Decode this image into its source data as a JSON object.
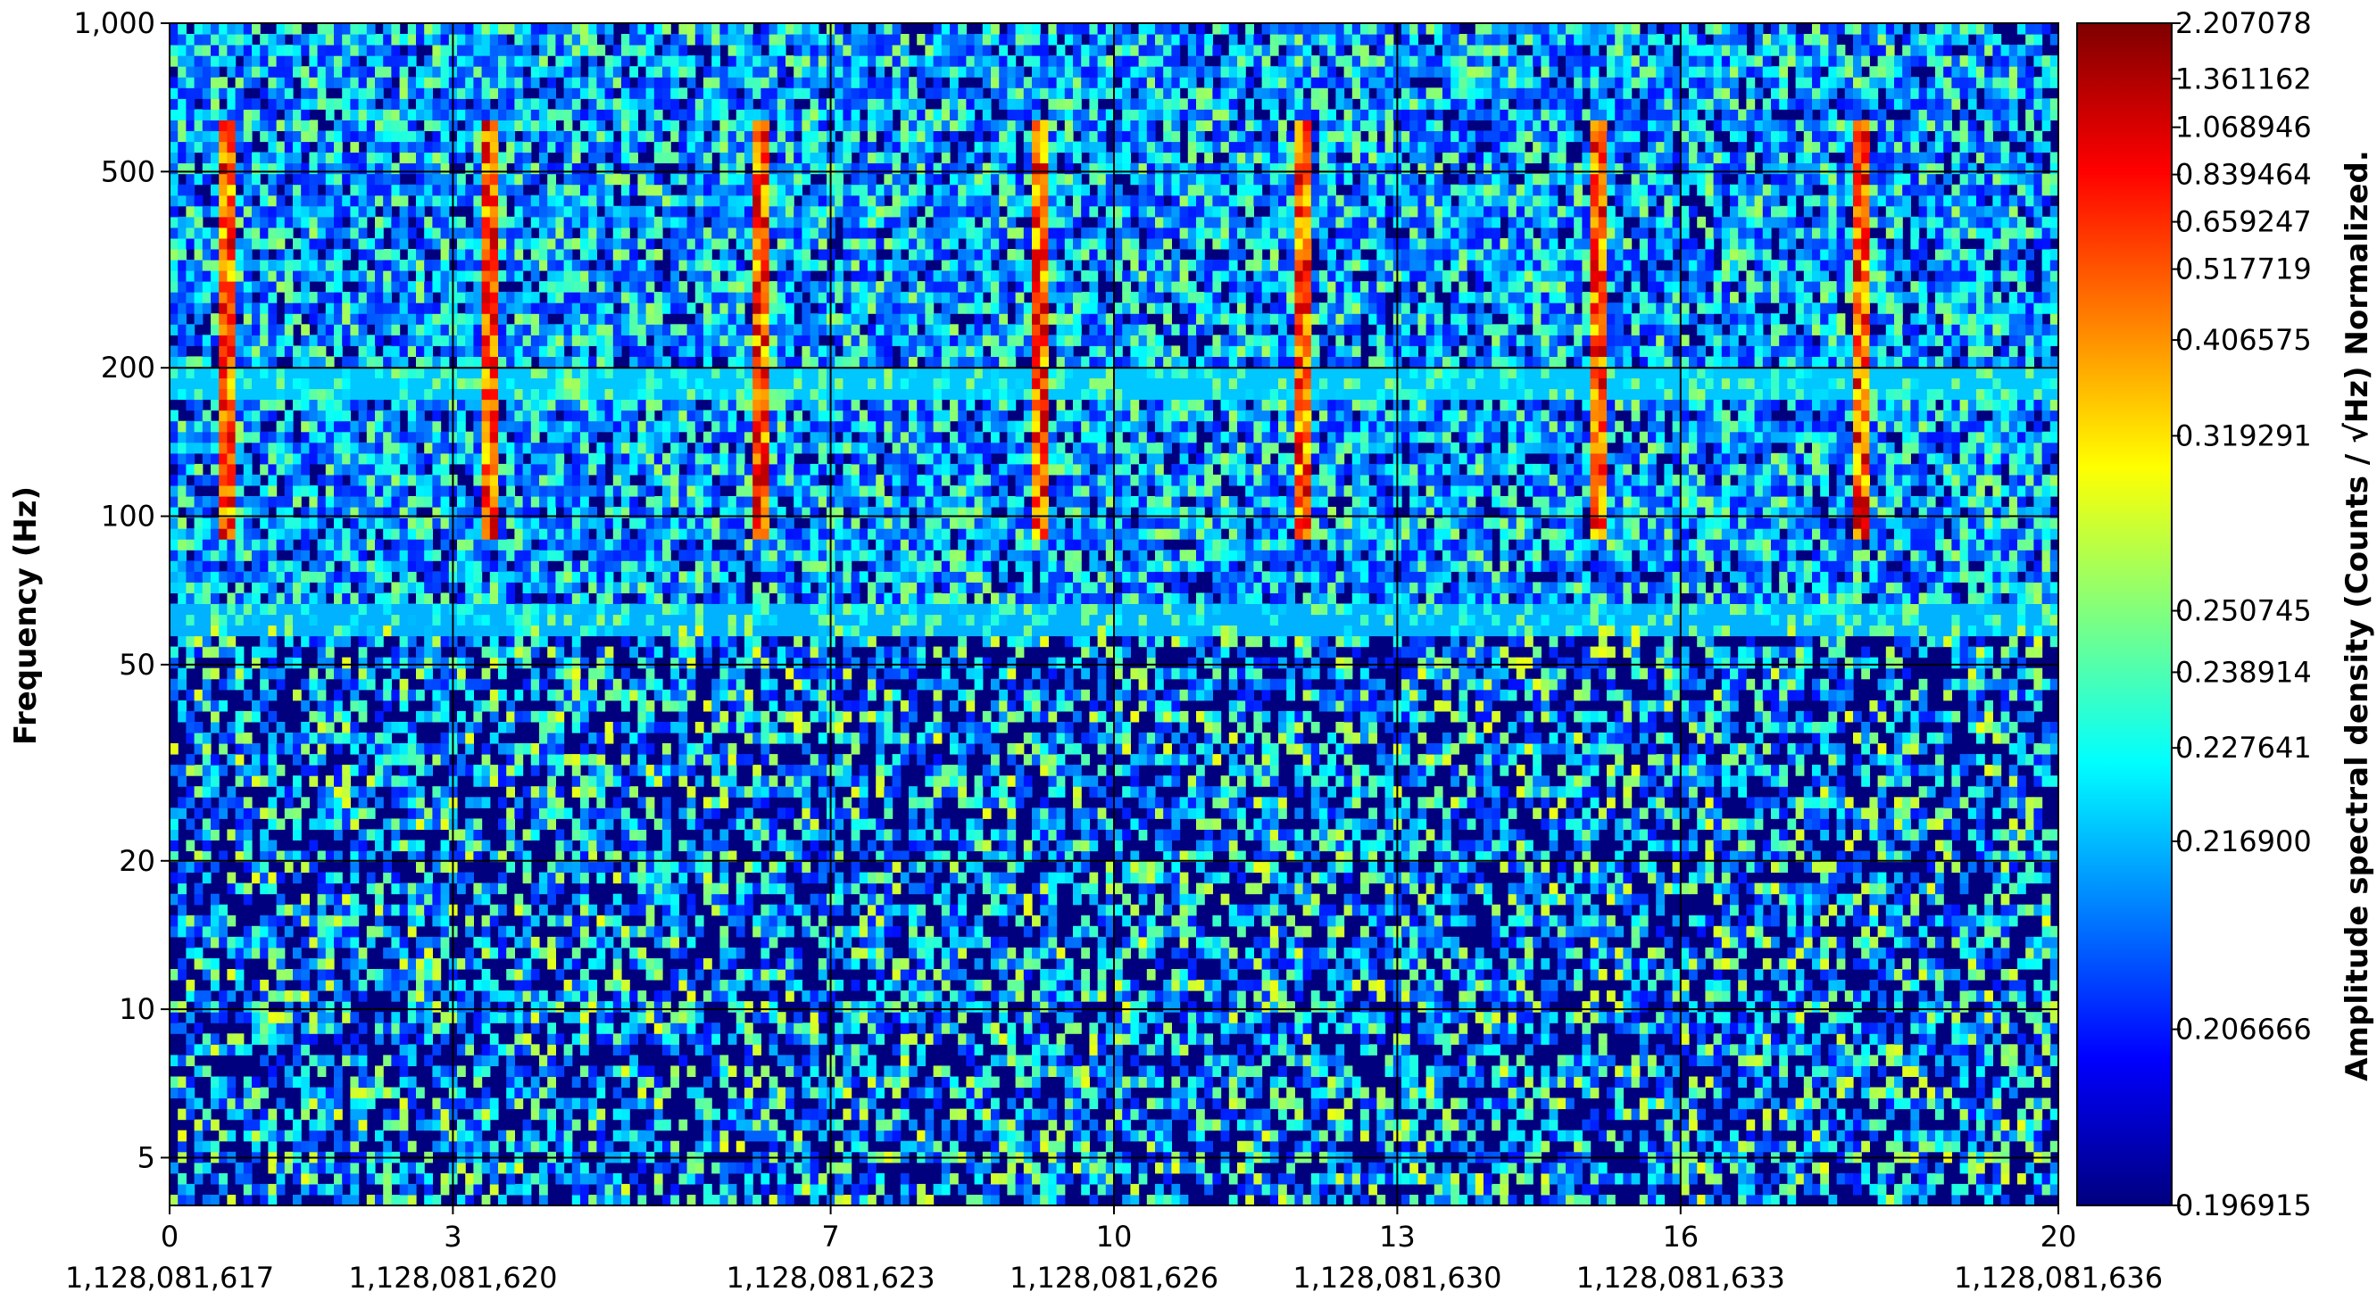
{
  "chart_data": {
    "type": "heatmap",
    "title": "",
    "xlabel": "",
    "ylabel": "Frequency (Hz)",
    "colorbar_label": "Amplitude spectral density (Counts / √Hz) Normalized.",
    "x_ticks": [
      "0",
      "3",
      "7",
      "10",
      "13",
      "16",
      "20"
    ],
    "x_tick_values": [
      0,
      3,
      7,
      10,
      13,
      16,
      20
    ],
    "x_gps_labels": [
      "1,128,081,617",
      "1,128,081,620",
      "1,128,081,623",
      "1,128,081,626",
      "1,128,081,630",
      "1,128,081,633",
      "1,128,081,636"
    ],
    "xlim": [
      0,
      20
    ],
    "y_scale": "log",
    "ylim": [
      4,
      1000
    ],
    "y_ticks": [
      "1,000",
      "500",
      "200",
      "100",
      "50",
      "20",
      "10",
      "5"
    ],
    "y_tick_values": [
      1000,
      500,
      200,
      100,
      50,
      20,
      10,
      5
    ],
    "colorbar_ticks": [
      "2.207078",
      "1.361162",
      "1.068946",
      "0.839464",
      "0.659247",
      "0.517719",
      "0.406575",
      "0.319291",
      "0.250745",
      "0.238914",
      "0.227641",
      "0.216900",
      "0.206666",
      "0.196915"
    ],
    "colorbar_tick_fractions": [
      1.0,
      0.953,
      0.912,
      0.872,
      0.832,
      0.792,
      0.732,
      0.651,
      0.503,
      0.451,
      0.387,
      0.308,
      0.149,
      0.0
    ],
    "colormap": [
      "#00007f",
      "#0000ff",
      "#007fff",
      "#00ffff",
      "#7fff7f",
      "#ffff00",
      "#ff7f00",
      "#ff0000",
      "#7f0000"
    ],
    "grid": true,
    "glitch_times": [
      0.6,
      3.4,
      6.3,
      9.2,
      12.0,
      15.1,
      17.9
    ],
    "glitch_freq_range": [
      90,
      650
    ]
  }
}
